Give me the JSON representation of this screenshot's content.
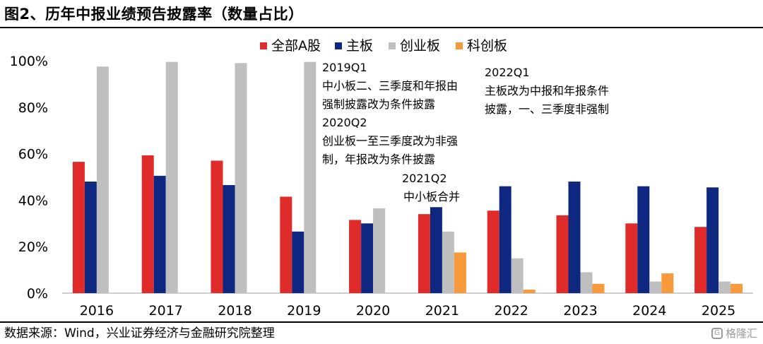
{
  "header": {
    "title": "图2、历年中报业绩预告披露率（数量占比）"
  },
  "footer": {
    "source": "数据来源：Wind，兴业证券经济与金融研究院整理",
    "watermark": "格隆汇"
  },
  "chart_data": {
    "type": "bar",
    "categories": [
      "2016",
      "2017",
      "2018",
      "2019",
      "2020",
      "2021",
      "2022",
      "2023",
      "2024",
      "2025"
    ],
    "ylim": [
      0,
      100
    ],
    "yticks": [
      "0%",
      "20%",
      "40%",
      "60%",
      "80%",
      "100%"
    ],
    "legend_position": "top",
    "grid": false,
    "series": [
      {
        "name": "全部A股",
        "color": "#e02b2b",
        "values": [
          56.5,
          59.3,
          57.0,
          41.5,
          31.5,
          34.0,
          35.5,
          33.5,
          30.0,
          28.5
        ]
      },
      {
        "name": "主板",
        "color": "#0e2781",
        "values": [
          48.0,
          50.5,
          46.5,
          26.5,
          30.0,
          37.0,
          46.0,
          48.0,
          46.0,
          45.5
        ]
      },
      {
        "name": "创业板",
        "color": "#bfbfbf",
        "values": [
          97.5,
          99.5,
          99.0,
          99.5,
          36.5,
          26.5,
          15.0,
          9.0,
          5.0,
          5.0
        ]
      },
      {
        "name": "科创板",
        "color": "#f79a3b",
        "values": [
          null,
          null,
          null,
          null,
          null,
          17.5,
          1.5,
          4.0,
          8.5,
          4.0
        ]
      }
    ],
    "annotations": [
      {
        "lines": [
          "2019Q1",
          "中小板二、三季度和年报由",
          "强制披露改为条件披露",
          "2020Q2",
          "创业板一至三季度改为非强",
          "制，年报改为条件披露"
        ]
      },
      {
        "lines": [
          "2021Q2",
          "中小板合并"
        ]
      },
      {
        "lines": [
          "2022Q1",
          "主板改为中报和年报条件",
          "披露，一、三季度非强制"
        ]
      }
    ]
  }
}
